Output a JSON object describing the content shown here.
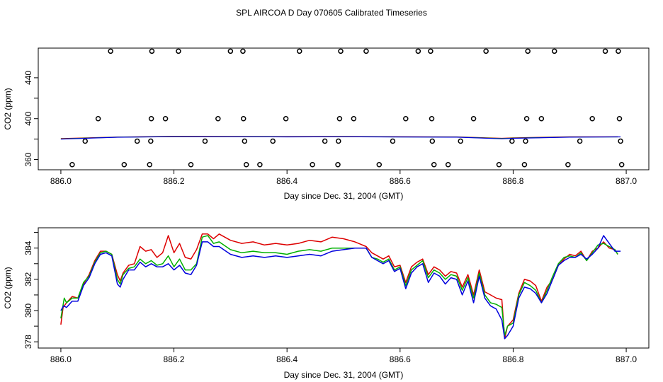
{
  "title": "SPL AIRCOA D  Day 070605  Calibrated Timeseries",
  "chart_data": [
    {
      "type": "scatter",
      "xlabel": "Day since Dec. 31, 2004 (GMT)",
      "ylabel": "CO2 (ppm)",
      "xlim": [
        885.96,
        887.04
      ],
      "ylim": [
        350,
        469
      ],
      "xticks": [
        "886.0",
        "886.2",
        "886.4",
        "886.6",
        "886.8",
        "887.0"
      ],
      "xtick_values": [
        886.0,
        886.2,
        886.4,
        886.6,
        886.8,
        887.0
      ],
      "yticks": [
        "360",
        "400",
        "440"
      ],
      "ytick_values": [
        360,
        380,
        400,
        420,
        440
      ],
      "calibration_points": [
        {
          "x": 886.02,
          "y": 355
        },
        {
          "x": 886.043,
          "y": 378
        },
        {
          "x": 886.066,
          "y": 400
        },
        {
          "x": 886.088,
          "y": 466
        },
        {
          "x": 886.112,
          "y": 355
        },
        {
          "x": 886.135,
          "y": 378
        },
        {
          "x": 886.157,
          "y": 355
        },
        {
          "x": 886.159,
          "y": 378
        },
        {
          "x": 886.16,
          "y": 400
        },
        {
          "x": 886.161,
          "y": 466
        },
        {
          "x": 886.185,
          "y": 400
        },
        {
          "x": 886.208,
          "y": 466
        },
        {
          "x": 886.23,
          "y": 355
        },
        {
          "x": 886.255,
          "y": 378
        },
        {
          "x": 886.278,
          "y": 400
        },
        {
          "x": 886.3,
          "y": 466
        },
        {
          "x": 886.322,
          "y": 466
        },
        {
          "x": 886.323,
          "y": 400
        },
        {
          "x": 886.325,
          "y": 378
        },
        {
          "x": 886.328,
          "y": 355
        },
        {
          "x": 886.352,
          "y": 355
        },
        {
          "x": 886.375,
          "y": 378
        },
        {
          "x": 886.398,
          "y": 400
        },
        {
          "x": 886.422,
          "y": 466
        },
        {
          "x": 886.445,
          "y": 355
        },
        {
          "x": 886.467,
          "y": 378
        },
        {
          "x": 886.49,
          "y": 355
        },
        {
          "x": 886.491,
          "y": 378
        },
        {
          "x": 886.493,
          "y": 400
        },
        {
          "x": 886.495,
          "y": 466
        },
        {
          "x": 886.518,
          "y": 400
        },
        {
          "x": 886.54,
          "y": 466
        },
        {
          "x": 886.563,
          "y": 355
        },
        {
          "x": 886.587,
          "y": 378
        },
        {
          "x": 886.61,
          "y": 400
        },
        {
          "x": 886.632,
          "y": 466
        },
        {
          "x": 886.654,
          "y": 466
        },
        {
          "x": 886.656,
          "y": 400
        },
        {
          "x": 886.657,
          "y": 378
        },
        {
          "x": 886.66,
          "y": 355
        },
        {
          "x": 886.685,
          "y": 355
        },
        {
          "x": 886.707,
          "y": 378
        },
        {
          "x": 886.73,
          "y": 400
        },
        {
          "x": 886.752,
          "y": 466
        },
        {
          "x": 886.775,
          "y": 355
        },
        {
          "x": 886.798,
          "y": 378
        },
        {
          "x": 886.82,
          "y": 355
        },
        {
          "x": 886.822,
          "y": 378
        },
        {
          "x": 886.824,
          "y": 400
        },
        {
          "x": 886.826,
          "y": 466
        },
        {
          "x": 886.85,
          "y": 400
        },
        {
          "x": 886.873,
          "y": 466
        },
        {
          "x": 886.897,
          "y": 355
        },
        {
          "x": 886.918,
          "y": 378
        },
        {
          "x": 886.94,
          "y": 400
        },
        {
          "x": 886.963,
          "y": 466
        },
        {
          "x": 886.986,
          "y": 466
        },
        {
          "x": 886.988,
          "y": 400
        },
        {
          "x": 886.99,
          "y": 378
        },
        {
          "x": 886.992,
          "y": 355
        }
      ],
      "series": [
        {
          "name": "red",
          "color": "#dd0000",
          "x": [
            886.0,
            886.1,
            886.2,
            886.3,
            886.4,
            886.5,
            886.6,
            886.7,
            886.78,
            886.8,
            886.9,
            886.985
          ],
          "y": [
            380.5,
            382.0,
            382.8,
            382.6,
            382.5,
            382.6,
            382.4,
            382.2,
            380.8,
            381.2,
            382.3,
            382.3
          ]
        },
        {
          "name": "green",
          "color": "#00b000",
          "x": [
            886.0,
            886.1,
            886.2,
            886.3,
            886.4,
            886.5,
            886.6,
            886.7,
            886.78,
            886.8,
            886.9,
            886.985
          ],
          "y": [
            380.2,
            381.9,
            382.5,
            382.4,
            382.3,
            382.4,
            382.2,
            382.0,
            380.5,
            381.0,
            382.0,
            382.2
          ]
        },
        {
          "name": "blue",
          "color": "#0000dd",
          "x": [
            886.0,
            886.1,
            886.2,
            886.3,
            886.4,
            886.5,
            886.6,
            886.7,
            886.78,
            886.8,
            886.9,
            886.99
          ],
          "y": [
            380.0,
            381.8,
            382.4,
            382.3,
            382.2,
            382.3,
            382.1,
            381.9,
            380.3,
            380.8,
            381.9,
            382.2
          ]
        }
      ]
    },
    {
      "type": "line",
      "xlabel": "Day since Dec. 31, 2004 (GMT)",
      "ylabel": "CO2 (ppm)",
      "xlim": [
        885.96,
        887.04
      ],
      "ylim": [
        377.6,
        385.3
      ],
      "xticks": [
        "886.0",
        "886.2",
        "886.4",
        "886.6",
        "886.8",
        "887.0"
      ],
      "xtick_values": [
        886.0,
        886.2,
        886.4,
        886.6,
        886.8,
        887.0
      ],
      "yticks": [
        "378",
        "380",
        "382",
        "384"
      ],
      "ytick_values": [
        378,
        379,
        380,
        381,
        382,
        383,
        384,
        385
      ],
      "series": [
        {
          "name": "red",
          "color": "#dd0000",
          "x": [
            886.0,
            886.004,
            886.01,
            886.02,
            886.03,
            886.04,
            886.05,
            886.06,
            886.07,
            886.08,
            886.09,
            886.1,
            886.105,
            886.11,
            886.12,
            886.13,
            886.14,
            886.15,
            886.16,
            886.17,
            886.18,
            886.19,
            886.2,
            886.21,
            886.22,
            886.23,
            886.24,
            886.25,
            886.26,
            886.27,
            886.28,
            886.3,
            886.32,
            886.34,
            886.36,
            886.38,
            886.4,
            886.42,
            886.44,
            886.46,
            886.48,
            886.5,
            886.52,
            886.54,
            886.55,
            886.56,
            886.57,
            886.58,
            886.59,
            886.6,
            886.61,
            886.62,
            886.63,
            886.64,
            886.65,
            886.66,
            886.67,
            886.68,
            886.69,
            886.7,
            886.71,
            886.72,
            886.73,
            886.74,
            886.75,
            886.76,
            886.77,
            886.78,
            886.785,
            886.79,
            886.8,
            886.81,
            886.82,
            886.83,
            886.84,
            886.85,
            886.86,
            886.87,
            886.88,
            886.89,
            886.9,
            886.91,
            886.92,
            886.93,
            886.94,
            886.95,
            886.96,
            886.97,
            886.98,
            886.985
          ],
          "y": [
            379.1,
            380.2,
            380.5,
            380.9,
            380.8,
            381.7,
            382.3,
            383.2,
            383.8,
            383.8,
            383.6,
            382.3,
            381.9,
            382.4,
            382.9,
            383.0,
            384.1,
            383.8,
            383.9,
            383.4,
            383.7,
            384.8,
            383.7,
            384.3,
            383.4,
            383.3,
            383.9,
            384.9,
            384.9,
            384.6,
            384.9,
            384.5,
            384.3,
            384.4,
            384.2,
            384.3,
            384.2,
            384.3,
            384.5,
            384.4,
            384.7,
            384.6,
            384.4,
            384.1,
            383.7,
            383.5,
            383.3,
            383.5,
            382.8,
            382.9,
            381.8,
            382.8,
            383.1,
            383.3,
            382.3,
            382.8,
            382.6,
            382.2,
            382.5,
            382.4,
            381.5,
            382.3,
            381.0,
            382.6,
            381.2,
            381.0,
            380.8,
            380.7,
            378.2,
            379.0,
            379.4,
            381.1,
            382.0,
            381.9,
            381.6,
            380.6,
            381.5,
            382.0,
            382.9,
            383.3,
            383.6,
            383.5,
            383.8,
            383.2,
            383.8,
            384.0,
            384.4,
            384.0,
            383.9,
            383.6
          ]
        },
        {
          "name": "green",
          "color": "#00b000",
          "x": [
            886.0,
            886.006,
            886.01,
            886.02,
            886.03,
            886.04,
            886.05,
            886.06,
            886.07,
            886.08,
            886.09,
            886.1,
            886.105,
            886.11,
            886.12,
            886.13,
            886.14,
            886.15,
            886.16,
            886.17,
            886.18,
            886.19,
            886.2,
            886.21,
            886.22,
            886.23,
            886.24,
            886.25,
            886.26,
            886.27,
            886.28,
            886.3,
            886.32,
            886.34,
            886.36,
            886.38,
            886.4,
            886.42,
            886.44,
            886.46,
            886.48,
            886.5,
            886.52,
            886.54,
            886.55,
            886.56,
            886.57,
            886.58,
            886.59,
            886.6,
            886.61,
            886.62,
            886.63,
            886.64,
            886.65,
            886.66,
            886.67,
            886.68,
            886.69,
            886.7,
            886.71,
            886.72,
            886.73,
            886.74,
            886.75,
            886.76,
            886.77,
            886.78,
            886.785,
            886.79,
            886.8,
            886.81,
            886.82,
            886.83,
            886.84,
            886.85,
            886.86,
            886.87,
            886.88,
            886.89,
            886.9,
            886.91,
            886.92,
            886.93,
            886.94,
            886.95,
            886.96,
            886.97,
            886.98,
            886.985
          ],
          "y": [
            379.5,
            380.8,
            380.5,
            380.8,
            380.8,
            381.8,
            382.2,
            383.1,
            383.7,
            383.8,
            383.6,
            382.0,
            381.7,
            382.3,
            382.7,
            382.8,
            383.3,
            383.0,
            383.2,
            382.9,
            383.0,
            383.5,
            382.8,
            383.3,
            382.6,
            382.6,
            383.0,
            384.7,
            384.8,
            384.3,
            384.4,
            383.9,
            383.7,
            383.8,
            383.7,
            383.7,
            383.6,
            383.8,
            383.9,
            383.8,
            384.0,
            384.0,
            384.0,
            384.0,
            383.4,
            383.3,
            383.1,
            383.3,
            382.6,
            382.8,
            381.6,
            382.6,
            382.9,
            383.2,
            382.1,
            382.6,
            382.4,
            382.0,
            382.3,
            382.2,
            381.3,
            382.1,
            380.8,
            382.4,
            381.0,
            380.5,
            380.4,
            380.2,
            378.4,
            379.0,
            379.2,
            381.0,
            381.8,
            381.6,
            381.3,
            380.5,
            381.3,
            382.2,
            383.0,
            383.4,
            383.5,
            383.4,
            383.7,
            383.2,
            383.7,
            384.2,
            384.3,
            384.1,
            383.9,
            383.6
          ]
        },
        {
          "name": "blue",
          "color": "#0000dd",
          "x": [
            886.0,
            886.005,
            886.01,
            886.02,
            886.03,
            886.04,
            886.05,
            886.06,
            886.07,
            886.08,
            886.09,
            886.1,
            886.105,
            886.11,
            886.12,
            886.13,
            886.14,
            886.15,
            886.16,
            886.17,
            886.18,
            886.19,
            886.2,
            886.21,
            886.22,
            886.23,
            886.24,
            886.25,
            886.26,
            886.27,
            886.28,
            886.3,
            886.32,
            886.34,
            886.36,
            886.38,
            886.4,
            886.42,
            886.44,
            886.46,
            886.48,
            886.5,
            886.52,
            886.54,
            886.55,
            886.56,
            886.57,
            886.58,
            886.59,
            886.6,
            886.61,
            886.62,
            886.63,
            886.64,
            886.65,
            886.66,
            886.67,
            886.68,
            886.69,
            886.7,
            886.71,
            886.72,
            886.73,
            886.74,
            886.75,
            886.76,
            886.77,
            886.78,
            886.785,
            886.79,
            886.8,
            886.81,
            886.82,
            886.83,
            886.84,
            886.85,
            886.86,
            886.87,
            886.88,
            886.89,
            886.9,
            886.91,
            886.92,
            886.93,
            886.94,
            886.95,
            886.96,
            886.97,
            886.98,
            886.99
          ],
          "y": [
            380.0,
            380.3,
            380.2,
            380.6,
            380.6,
            381.6,
            382.1,
            383.0,
            383.6,
            383.7,
            383.5,
            381.7,
            381.5,
            382.0,
            382.6,
            382.6,
            383.1,
            382.8,
            383.0,
            382.8,
            382.8,
            383.0,
            382.6,
            382.9,
            382.4,
            382.3,
            382.9,
            384.4,
            384.4,
            384.1,
            384.1,
            383.6,
            383.4,
            383.5,
            383.4,
            383.5,
            383.4,
            383.5,
            383.6,
            383.5,
            383.8,
            383.9,
            384.0,
            384.0,
            383.4,
            383.2,
            383.0,
            383.2,
            382.5,
            382.7,
            381.4,
            382.4,
            382.8,
            383.0,
            381.8,
            382.4,
            382.2,
            381.7,
            382.1,
            382.0,
            381.0,
            381.9,
            380.5,
            382.2,
            380.8,
            380.3,
            380.1,
            379.4,
            378.2,
            378.4,
            379.0,
            380.8,
            381.5,
            381.4,
            381.1,
            380.5,
            381.1,
            382.0,
            382.9,
            383.2,
            383.4,
            383.4,
            383.6,
            383.3,
            383.6,
            384.0,
            384.8,
            384.3,
            383.8,
            383.8
          ]
        }
      ]
    }
  ]
}
